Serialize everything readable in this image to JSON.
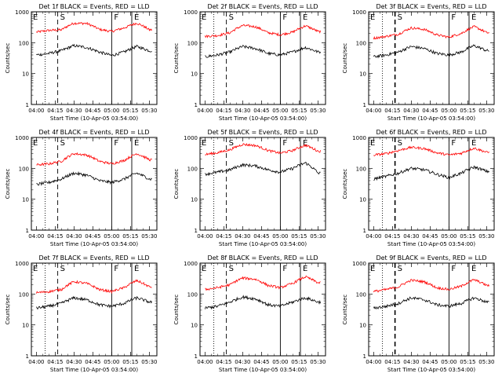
{
  "chart_data": {
    "type": "line",
    "panel_title_template": "Det {n}f BLACK = Events, RED = LLD",
    "ylabel": "Counts/sec",
    "xlabel": "Start Time (10-Apr-05 03:54:00)",
    "y_scale": "log",
    "ylim": [
      1,
      1000
    ],
    "y_ticks": [
      "1",
      "10",
      "100",
      "1000"
    ],
    "x_ticks": [
      "04:00",
      "04:15",
      "04:30",
      "04:45",
      "05:00",
      "05:15",
      "05:30"
    ],
    "x_tick_minutes": [
      0,
      15,
      30,
      45,
      60,
      75,
      90
    ],
    "xlim_minutes": [
      -4,
      96
    ],
    "series_colors": {
      "events": "#000000",
      "lld": "#ff0000"
    },
    "markers": [
      {
        "label": "E",
        "minute": -4,
        "style": "solid"
      },
      {
        "label": "",
        "minute": 7,
        "style": "dotted"
      },
      {
        "label": "S",
        "minute": 17,
        "style": "dashed"
      },
      {
        "label": "F",
        "minute": 60,
        "style": "solid"
      },
      {
        "label": "E",
        "minute": 76,
        "style": "solid"
      }
    ],
    "panels": [
      {
        "det": "1",
        "events_minute_values": [
          [
            0,
            40
          ],
          [
            10,
            45
          ],
          [
            20,
            55
          ],
          [
            30,
            80
          ],
          [
            40,
            70
          ],
          [
            50,
            50
          ],
          [
            60,
            38
          ],
          [
            70,
            50
          ],
          [
            80,
            75
          ],
          [
            90,
            55
          ]
        ],
        "lld_minute_values": [
          [
            0,
            220
          ],
          [
            10,
            250
          ],
          [
            20,
            260
          ],
          [
            30,
            430
          ],
          [
            40,
            420
          ],
          [
            50,
            270
          ],
          [
            60,
            230
          ],
          [
            70,
            300
          ],
          [
            80,
            430
          ],
          [
            90,
            260
          ]
        ]
      },
      {
        "det": "2",
        "events_minute_values": [
          [
            0,
            35
          ],
          [
            10,
            40
          ],
          [
            20,
            50
          ],
          [
            30,
            75
          ],
          [
            40,
            65
          ],
          [
            50,
            45
          ],
          [
            60,
            40
          ],
          [
            70,
            50
          ],
          [
            80,
            70
          ],
          [
            90,
            50
          ]
        ],
        "lld_minute_values": [
          [
            0,
            160
          ],
          [
            10,
            170
          ],
          [
            20,
            210
          ],
          [
            30,
            360
          ],
          [
            40,
            330
          ],
          [
            50,
            210
          ],
          [
            60,
            180
          ],
          [
            70,
            220
          ],
          [
            80,
            350
          ],
          [
            90,
            230
          ]
        ]
      },
      {
        "det": "3",
        "events_minute_values": [
          [
            0,
            35
          ],
          [
            10,
            40
          ],
          [
            20,
            50
          ],
          [
            30,
            75
          ],
          [
            40,
            65
          ],
          [
            50,
            45
          ],
          [
            60,
            40
          ],
          [
            70,
            50
          ],
          [
            80,
            80
          ],
          [
            90,
            55
          ]
        ],
        "lld_minute_values": [
          [
            0,
            140
          ],
          [
            10,
            160
          ],
          [
            20,
            190
          ],
          [
            30,
            300
          ],
          [
            40,
            270
          ],
          [
            50,
            180
          ],
          [
            60,
            150
          ],
          [
            70,
            200
          ],
          [
            80,
            330
          ],
          [
            90,
            210
          ]
        ]
      },
      {
        "det": "4",
        "events_minute_values": [
          [
            0,
            30
          ],
          [
            10,
            35
          ],
          [
            20,
            45
          ],
          [
            30,
            70
          ],
          [
            40,
            60
          ],
          [
            50,
            40
          ],
          [
            60,
            35
          ],
          [
            70,
            45
          ],
          [
            80,
            70
          ],
          [
            90,
            45
          ]
        ],
        "lld_minute_values": [
          [
            0,
            130
          ],
          [
            10,
            140
          ],
          [
            20,
            170
          ],
          [
            30,
            300
          ],
          [
            40,
            270
          ],
          [
            50,
            170
          ],
          [
            60,
            140
          ],
          [
            70,
            180
          ],
          [
            80,
            300
          ],
          [
            90,
            190
          ]
        ]
      },
      {
        "det": "5",
        "events_minute_values": [
          [
            0,
            65
          ],
          [
            10,
            75
          ],
          [
            20,
            90
          ],
          [
            30,
            130
          ],
          [
            40,
            120
          ],
          [
            50,
            90
          ],
          [
            60,
            75
          ],
          [
            70,
            100
          ],
          [
            80,
            150
          ],
          [
            90,
            70
          ]
        ],
        "lld_minute_values": [
          [
            0,
            280
          ],
          [
            10,
            320
          ],
          [
            20,
            400
          ],
          [
            30,
            600
          ],
          [
            40,
            550
          ],
          [
            50,
            380
          ],
          [
            60,
            310
          ],
          [
            70,
            380
          ],
          [
            80,
            560
          ],
          [
            90,
            360
          ]
        ]
      },
      {
        "det": "6",
        "events_minute_values": [
          [
            0,
            45
          ],
          [
            10,
            55
          ],
          [
            20,
            70
          ],
          [
            30,
            100
          ],
          [
            40,
            90
          ],
          [
            50,
            65
          ],
          [
            60,
            50
          ],
          [
            70,
            70
          ],
          [
            80,
            110
          ],
          [
            90,
            80
          ]
        ],
        "lld_minute_values": [
          [
            0,
            270
          ],
          [
            10,
            300
          ],
          [
            20,
            380
          ],
          [
            30,
            480
          ],
          [
            40,
            440
          ],
          [
            50,
            320
          ],
          [
            60,
            270
          ],
          [
            70,
            310
          ],
          [
            80,
            450
          ],
          [
            90,
            330
          ]
        ]
      },
      {
        "det": "7",
        "events_minute_values": [
          [
            0,
            35
          ],
          [
            10,
            40
          ],
          [
            20,
            50
          ],
          [
            30,
            75
          ],
          [
            40,
            65
          ],
          [
            50,
            45
          ],
          [
            60,
            40
          ],
          [
            70,
            50
          ],
          [
            80,
            75
          ],
          [
            90,
            55
          ]
        ],
        "lld_minute_values": [
          [
            0,
            110
          ],
          [
            10,
            120
          ],
          [
            20,
            140
          ],
          [
            30,
            250
          ],
          [
            40,
            220
          ],
          [
            50,
            140
          ],
          [
            60,
            120
          ],
          [
            70,
            160
          ],
          [
            80,
            270
          ],
          [
            90,
            170
          ]
        ]
      },
      {
        "det": "8",
        "events_minute_values": [
          [
            0,
            35
          ],
          [
            10,
            40
          ],
          [
            20,
            55
          ],
          [
            30,
            80
          ],
          [
            40,
            70
          ],
          [
            50,
            45
          ],
          [
            60,
            40
          ],
          [
            70,
            55
          ],
          [
            80,
            75
          ],
          [
            90,
            55
          ]
        ],
        "lld_minute_values": [
          [
            0,
            140
          ],
          [
            10,
            160
          ],
          [
            20,
            200
          ],
          [
            30,
            330
          ],
          [
            40,
            300
          ],
          [
            50,
            190
          ],
          [
            60,
            160
          ],
          [
            70,
            220
          ],
          [
            80,
            360
          ],
          [
            90,
            230
          ]
        ]
      },
      {
        "det": "9",
        "events_minute_values": [
          [
            0,
            35
          ],
          [
            10,
            40
          ],
          [
            20,
            50
          ],
          [
            30,
            75
          ],
          [
            40,
            65
          ],
          [
            50,
            45
          ],
          [
            60,
            40
          ],
          [
            70,
            50
          ],
          [
            80,
            75
          ],
          [
            90,
            55
          ]
        ],
        "lld_minute_values": [
          [
            0,
            120
          ],
          [
            10,
            140
          ],
          [
            20,
            170
          ],
          [
            30,
            280
          ],
          [
            40,
            250
          ],
          [
            50,
            160
          ],
          [
            60,
            140
          ],
          [
            70,
            180
          ],
          [
            80,
            290
          ],
          [
            90,
            190
          ]
        ]
      }
    ]
  }
}
